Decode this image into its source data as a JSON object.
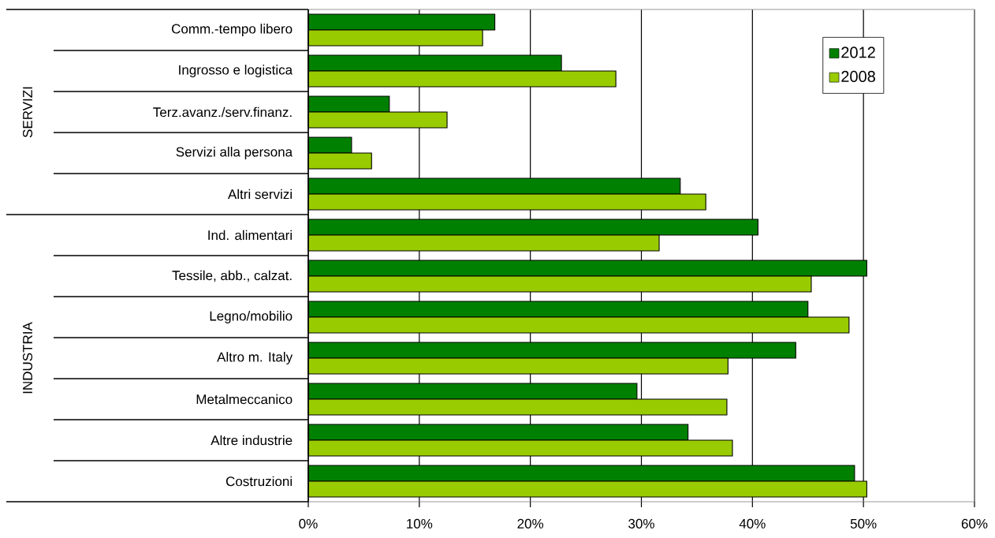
{
  "chart_data": {
    "type": "bar",
    "orientation": "horizontal",
    "categories": [
      "Comm.-tempo libero",
      "Ingrosso e logistica",
      "Terz.avanz./serv.finanz.",
      "Servizi alla persona",
      "Altri servizi",
      "Ind. alimentari",
      "Tessile, abb., calzat.",
      "Legno/mobilio",
      "Altro m. Italy",
      "Metalmeccanico",
      "Altre industrie",
      "Costruzioni"
    ],
    "series": [
      {
        "name": "2012",
        "color": "#008000",
        "values": [
          16.8,
          22.8,
          7.3,
          3.9,
          33.5,
          40.5,
          50.3,
          45.0,
          43.9,
          29.6,
          34.2,
          49.2
        ]
      },
      {
        "name": "2008",
        "color": "#99cc00",
        "values": [
          15.7,
          27.7,
          12.5,
          5.7,
          35.8,
          31.6,
          45.3,
          48.7,
          37.8,
          37.7,
          38.2,
          50.3
        ]
      }
    ],
    "xlim": [
      0,
      60
    ],
    "xticks": [
      {
        "value": 0,
        "label": "0%"
      },
      {
        "value": 10,
        "label": "10%"
      },
      {
        "value": 20,
        "label": "20%"
      },
      {
        "value": 30,
        "label": "30%"
      },
      {
        "value": 40,
        "label": "40%"
      },
      {
        "value": 50,
        "label": "50%"
      },
      {
        "value": 60,
        "label": "60%"
      }
    ],
    "grid": "x",
    "legend": "top right",
    "annotations": [
      "SERVIZI",
      "INDUSTRIA"
    ]
  }
}
